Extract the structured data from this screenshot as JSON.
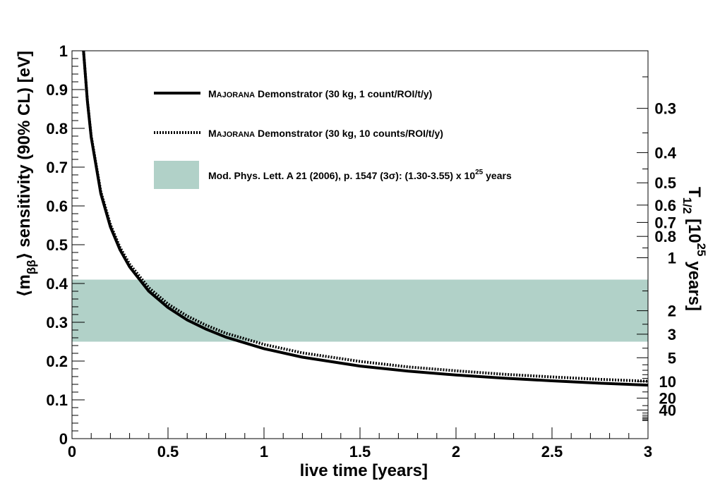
{
  "chart_data": {
    "type": "line",
    "title": "",
    "xlabel": "live time [years]",
    "ylabel": {
      "prefix": "⟨m",
      "subscript": "ββ",
      "suffix": "⟩ sensitivity (90% CL) [eV]"
    },
    "xlim": [
      0,
      3
    ],
    "ylim": [
      0,
      1
    ],
    "x_ticks": [
      "0",
      "0.5",
      "1",
      "1.5",
      "2",
      "2.5",
      "3"
    ],
    "y_ticks": [
      "0",
      "0.1",
      "0.2",
      "0.3",
      "0.4",
      "0.5",
      "0.6",
      "0.7",
      "0.8",
      "0.9",
      "1"
    ],
    "right_axis": {
      "label": {
        "main": "T",
        "subscript": "1/2",
        "bracket": " [10",
        "superscript": "25",
        "unit": " years]"
      },
      "conversion": "m = 0.4664 / sqrt(T)",
      "ticks": [
        {
          "label": "0.3",
          "value": 0.3
        },
        {
          "label": "0.4",
          "value": 0.4
        },
        {
          "label": "0.5",
          "value": 0.5
        },
        {
          "label": "0.6",
          "value": 0.6
        },
        {
          "label": "0.7",
          "value": 0.7
        },
        {
          "label": "0.8",
          "value": 0.8
        },
        {
          "label": "1",
          "value": 1
        },
        {
          "label": "2",
          "value": 2
        },
        {
          "label": "3",
          "value": 3
        },
        {
          "label": "5",
          "value": 5
        },
        {
          "label": "10",
          "value": 10
        },
        {
          "label": "20",
          "value": 20
        },
        {
          "label": "40",
          "value": 40
        }
      ]
    },
    "series": [
      {
        "name": "Majorana Demonstrator (30 kg, 1 count/ROI/t/y)",
        "style": "solid",
        "x": [
          0.06,
          0.08,
          0.1,
          0.15,
          0.2,
          0.25,
          0.3,
          0.4,
          0.5,
          0.6,
          0.7,
          0.8,
          1.0,
          1.2,
          1.5,
          1.75,
          2.0,
          2.25,
          2.5,
          2.75,
          3.0
        ],
        "values": [
          1.0,
          0.87,
          0.777,
          0.632,
          0.546,
          0.487,
          0.443,
          0.38,
          0.338,
          0.306,
          0.282,
          0.262,
          0.232,
          0.21,
          0.187,
          0.174,
          0.164,
          0.156,
          0.149,
          0.143,
          0.138
        ]
      },
      {
        "name": "Majorana Demonstrator (30 kg, 10 counts/ROI/t/y)",
        "style": "dotted",
        "x": [
          0.06,
          0.08,
          0.1,
          0.15,
          0.2,
          0.25,
          0.3,
          0.4,
          0.5,
          0.6,
          0.7,
          0.8,
          1.0,
          1.2,
          1.5,
          1.75,
          2.0,
          2.25,
          2.5,
          2.75,
          3.0
        ],
        "values": [
          1.0,
          0.872,
          0.78,
          0.637,
          0.552,
          0.493,
          0.45,
          0.389,
          0.347,
          0.316,
          0.292,
          0.272,
          0.243,
          0.221,
          0.199,
          0.185,
          0.175,
          0.166,
          0.159,
          0.153,
          0.148
        ]
      }
    ],
    "band": {
      "name": "Mod. Phys. Lett. A 21 (2006), p. 1547 (3σ): (1.30-3.55) x 10^25 years",
      "ymin": 0.25,
      "ymax": 0.41,
      "color": "#b1d1c8"
    },
    "legend": {
      "position": "top-center",
      "entries": [
        {
          "smallcaps_first": "M",
          "smallcaps_rest": "AJORANA",
          "text": " Demonstrator (30 kg, 1 count/ROI/t/y)",
          "style": "solid"
        },
        {
          "smallcaps_first": "M",
          "smallcaps_rest": "AJORANA",
          "text": " Demonstrator (30 kg, 10 counts/ROI/t/y)",
          "style": "dotted"
        },
        {
          "text": "Mod. Phys. Lett. A 21 (2006), p. 1547 (3σ): (1.30-3.55) x 10",
          "superscript": "25",
          "suffix": " years",
          "style": "band"
        }
      ]
    }
  },
  "colors": {
    "line": "#000000",
    "band": "#b1d1c8",
    "background": "#ffffff"
  }
}
